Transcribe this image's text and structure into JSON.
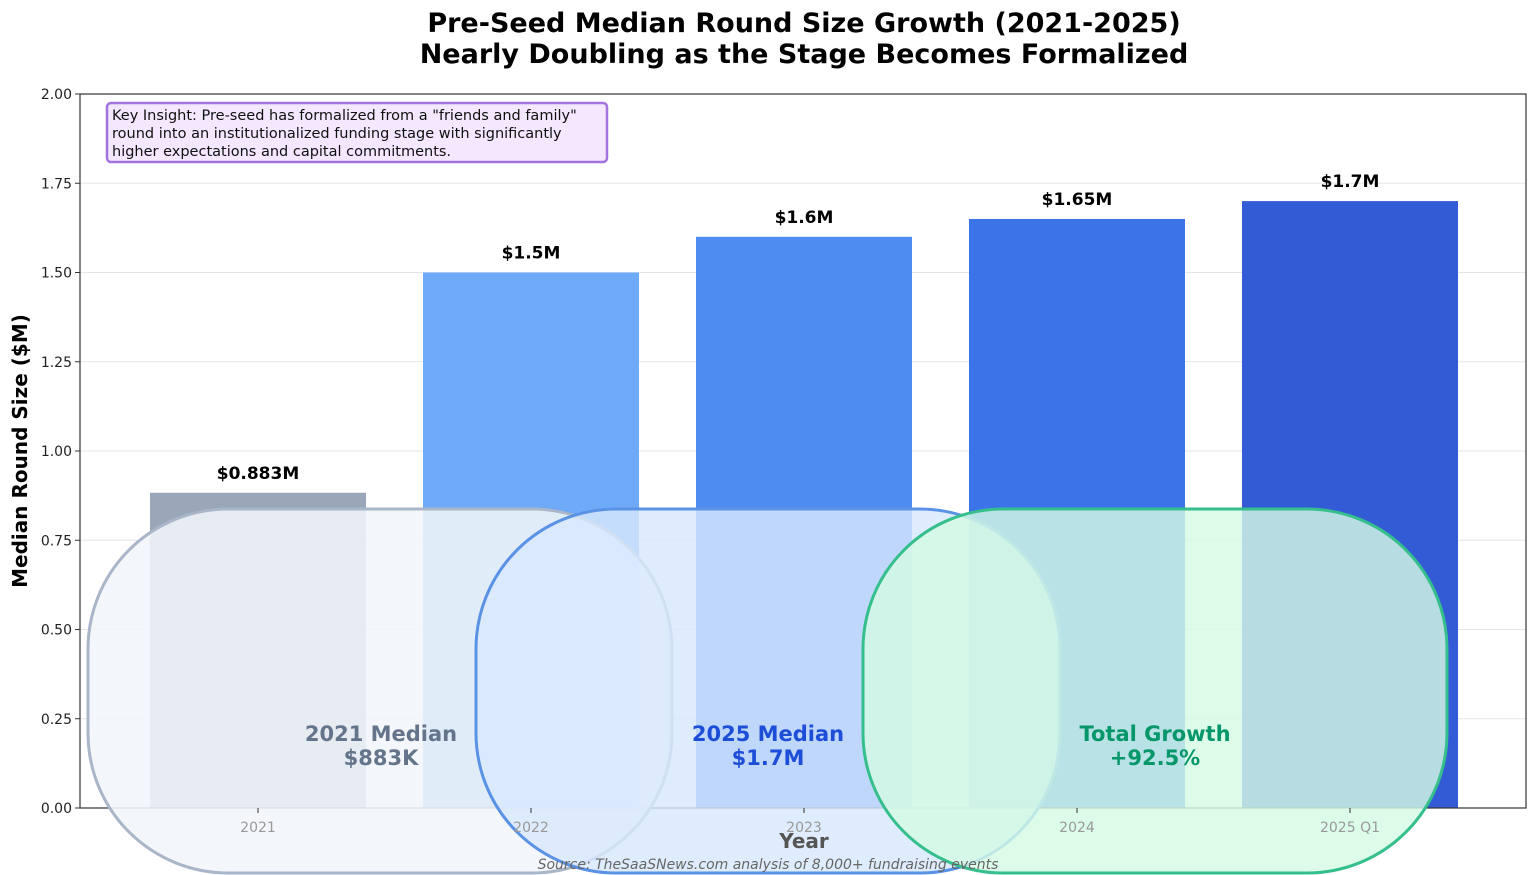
{
  "chart_data": {
    "type": "bar",
    "title": "Pre-Seed Median Round Size Growth (2021-2025)",
    "subtitle": "Nearly Doubling as the Stage Becomes Formalized",
    "xlabel": "Year",
    "ylabel": "Median Round Size ($M)",
    "ylim": [
      0,
      2.0
    ],
    "yticks": [
      "0.00",
      "0.25",
      "0.50",
      "0.75",
      "1.00",
      "1.25",
      "1.50",
      "1.75",
      "2.00"
    ],
    "grid": "horizontal",
    "categories": [
      "2021",
      "2022",
      "2023",
      "2024",
      "2025 Q1"
    ],
    "values": [
      0.883,
      1.5,
      1.6,
      1.65,
      1.7
    ],
    "data_labels": [
      "$0.883M",
      "$1.5M",
      "$1.6M",
      "$1.65M",
      "$1.7M"
    ],
    "bar_colors": [
      "#9aa7b8",
      "#6eaaf7",
      "#4e8cf2",
      "#3b73e9",
      "#335bd6"
    ],
    "insight": [
      "Key Insight: Pre-seed has formalized from a \"friends and family\"",
      "round into an institutionalized funding stage with significantly",
      "higher expectations and capital commitments."
    ],
    "callouts": [
      {
        "line1": "2021 Median",
        "line2": "$883K",
        "color": "#64748b"
      },
      {
        "line1": "2025 Median",
        "line2": "$1.7M",
        "color": "#1d4ed8"
      },
      {
        "line1": "Total Growth",
        "line2": "+92.5%",
        "color": "#059669"
      }
    ],
    "source": "Source: TheSaaSNews.com analysis of 8,000+ fundraising events"
  }
}
